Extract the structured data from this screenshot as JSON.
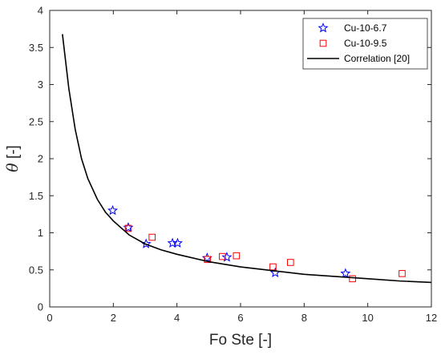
{
  "chart_data": {
    "type": "scatter",
    "xlabel": "Fo Ste [-]",
    "ylabel_symbol": "θ",
    "ylabel_unit": " [-]",
    "xlim": [
      0,
      12
    ],
    "ylim": [
      0,
      4
    ],
    "x_ticks": [
      0,
      2,
      4,
      6,
      8,
      10,
      12
    ],
    "y_ticks": [
      0,
      0.5,
      1,
      1.5,
      2,
      2.5,
      3,
      3.5,
      4
    ],
    "x_tick_labels": [
      "0",
      "2",
      "4",
      "6",
      "8",
      "10",
      "12"
    ],
    "y_tick_labels": [
      "0",
      "0.5",
      "1",
      "1.5",
      "2",
      "2.5",
      "3",
      "3.5",
      "4"
    ],
    "grid": false,
    "legend_position": "top-right",
    "series": [
      {
        "name": "Cu-10-6.7",
        "marker": "star",
        "color": "#0000ff",
        "points": [
          {
            "x": 1.98,
            "y": 1.3
          },
          {
            "x": 2.47,
            "y": 1.07
          },
          {
            "x": 3.03,
            "y": 0.85
          },
          {
            "x": 3.86,
            "y": 0.86
          },
          {
            "x": 4.02,
            "y": 0.86
          },
          {
            "x": 4.95,
            "y": 0.66
          },
          {
            "x": 5.57,
            "y": 0.67
          },
          {
            "x": 7.09,
            "y": 0.46
          },
          {
            "x": 9.3,
            "y": 0.45
          }
        ]
      },
      {
        "name": "Cu-10-9.5",
        "marker": "square",
        "color": "#ff0000",
        "points": [
          {
            "x": 2.47,
            "y": 1.06
          },
          {
            "x": 3.22,
            "y": 0.94
          },
          {
            "x": 4.96,
            "y": 0.64
          },
          {
            "x": 5.43,
            "y": 0.68
          },
          {
            "x": 5.87,
            "y": 0.69
          },
          {
            "x": 7.02,
            "y": 0.54
          },
          {
            "x": 7.57,
            "y": 0.6
          },
          {
            "x": 9.52,
            "y": 0.38
          },
          {
            "x": 11.08,
            "y": 0.45
          }
        ]
      },
      {
        "name": "Correlation [20]",
        "marker": "line",
        "color": "#000000",
        "points": [
          {
            "x": 0.4,
            "y": 3.68
          },
          {
            "x": 0.6,
            "y": 2.95
          },
          {
            "x": 0.8,
            "y": 2.4
          },
          {
            "x": 1.0,
            "y": 2.0
          },
          {
            "x": 1.2,
            "y": 1.73
          },
          {
            "x": 1.5,
            "y": 1.45
          },
          {
            "x": 1.75,
            "y": 1.28
          },
          {
            "x": 2.0,
            "y": 1.16
          },
          {
            "x": 2.5,
            "y": 0.97
          },
          {
            "x": 3.0,
            "y": 0.85
          },
          {
            "x": 3.5,
            "y": 0.77
          },
          {
            "x": 4.0,
            "y": 0.71
          },
          {
            "x": 5.0,
            "y": 0.61
          },
          {
            "x": 6.0,
            "y": 0.54
          },
          {
            "x": 7.0,
            "y": 0.49
          },
          {
            "x": 8.0,
            "y": 0.44
          },
          {
            "x": 9.0,
            "y": 0.41
          },
          {
            "x": 10.0,
            "y": 0.38
          },
          {
            "x": 11.0,
            "y": 0.35
          },
          {
            "x": 12.0,
            "y": 0.33
          }
        ]
      }
    ]
  }
}
